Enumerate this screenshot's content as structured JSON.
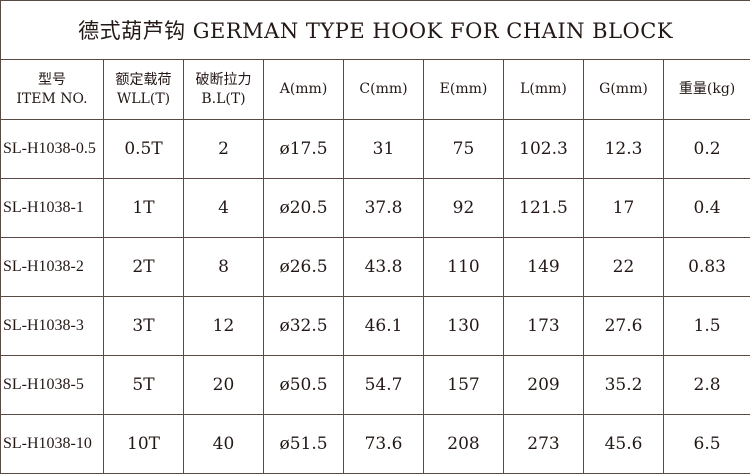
{
  "title": "德式葫芦钩   GERMAN TYPE HOOK FOR CHAIN BLOCK",
  "headers": [
    {
      "line1": "型号",
      "line2": "ITEM NO."
    },
    {
      "line1": "额定载荷",
      "line2": "WLL(T)"
    },
    {
      "line1": "破断拉力",
      "line2": "B.L(T)"
    },
    {
      "line1": "A(mm)",
      "line2": ""
    },
    {
      "line1": "C(mm)",
      "line2": ""
    },
    {
      "line1": "E(mm)",
      "line2": ""
    },
    {
      "line1": "L(mm)",
      "line2": ""
    },
    {
      "line1": "G(mm)",
      "line2": ""
    },
    {
      "line1": "重量(kg)",
      "line2": ""
    }
  ],
  "rows": [
    [
      "SL-H1038-0.5",
      "0.5T",
      "2",
      "ø17.5",
      "31",
      "75",
      "102.3",
      "12.3",
      "0.2"
    ],
    [
      "SL-H1038-1",
      "1T",
      "4",
      "ø20.5",
      "37.8",
      "92",
      "121.5",
      "17",
      "0.4"
    ],
    [
      "SL-H1038-2",
      "2T",
      "8",
      "ø26.5",
      "43.8",
      "110",
      "149",
      "22",
      "0.83"
    ],
    [
      "SL-H1038-3",
      "3T",
      "12",
      "ø32.5",
      "46.1",
      "130",
      "173",
      "27.6",
      "1.5"
    ],
    [
      "SL-H1038-5",
      "5T",
      "20",
      "ø50.5",
      "54.7",
      "157",
      "209",
      "35.2",
      "2.8"
    ],
    [
      "SL-H1038-10",
      "10T",
      "40",
      "ø51.5",
      "73.6",
      "208",
      "273",
      "45.6",
      "6.5"
    ]
  ]
}
